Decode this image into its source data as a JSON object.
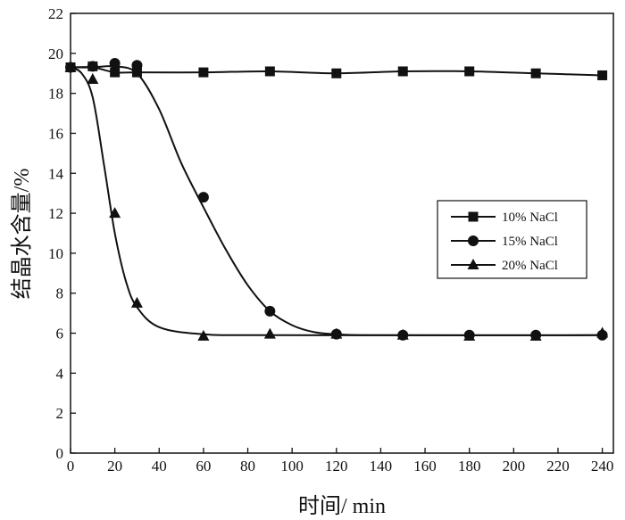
{
  "chart_data": {
    "type": "line",
    "xlabel": "时间/ min",
    "ylabel": "结晶水含量/%",
    "xlim": [
      0,
      245
    ],
    "ylim": [
      0,
      22
    ],
    "xticks": [
      0,
      20,
      40,
      60,
      80,
      100,
      120,
      140,
      160,
      180,
      200,
      220,
      240
    ],
    "yticks": [
      0,
      2,
      4,
      6,
      8,
      10,
      12,
      14,
      16,
      18,
      20,
      22
    ],
    "legend_position": "center-right",
    "grid": false,
    "series": [
      {
        "name": "10% NaCl",
        "marker": "square",
        "points": [
          [
            0,
            19.3
          ],
          [
            10,
            19.35
          ],
          [
            20,
            19.05
          ],
          [
            30,
            19.05
          ],
          [
            60,
            19.05
          ],
          [
            90,
            19.1
          ],
          [
            120,
            19.0
          ],
          [
            150,
            19.1
          ],
          [
            180,
            19.1
          ],
          [
            210,
            19.0
          ],
          [
            240,
            18.9
          ]
        ],
        "fit": [
          [
            0,
            19.3
          ],
          [
            10,
            19.3
          ],
          [
            20,
            19.05
          ],
          [
            30,
            19.05
          ],
          [
            60,
            19.05
          ],
          [
            90,
            19.1
          ],
          [
            120,
            19.0
          ],
          [
            150,
            19.1
          ],
          [
            180,
            19.1
          ],
          [
            210,
            19.0
          ],
          [
            240,
            18.9
          ]
        ]
      },
      {
        "name": "15% NaCl",
        "marker": "circle",
        "points": [
          [
            0,
            19.3
          ],
          [
            10,
            19.35
          ],
          [
            20,
            19.5
          ],
          [
            30,
            19.4
          ],
          [
            60,
            12.8
          ],
          [
            90,
            7.1
          ],
          [
            120,
            5.95
          ],
          [
            150,
            5.9
          ],
          [
            180,
            5.9
          ],
          [
            210,
            5.9
          ],
          [
            240,
            5.9
          ]
        ],
        "fit": [
          [
            0,
            19.3
          ],
          [
            10,
            19.3
          ],
          [
            20,
            19.35
          ],
          [
            30,
            19.0
          ],
          [
            40,
            17.2
          ],
          [
            50,
            14.5
          ],
          [
            60,
            12.3
          ],
          [
            70,
            10.2
          ],
          [
            80,
            8.4
          ],
          [
            90,
            7.1
          ],
          [
            100,
            6.4
          ],
          [
            110,
            6.05
          ],
          [
            120,
            5.95
          ],
          [
            140,
            5.9
          ],
          [
            240,
            5.9
          ]
        ]
      },
      {
        "name": "20% NaCl",
        "marker": "triangle",
        "points": [
          [
            0,
            19.3
          ],
          [
            10,
            18.7
          ],
          [
            20,
            12.0
          ],
          [
            30,
            7.5
          ],
          [
            60,
            5.85
          ],
          [
            90,
            5.95
          ],
          [
            120,
            5.95
          ],
          [
            150,
            5.9
          ],
          [
            180,
            5.85
          ],
          [
            210,
            5.85
          ],
          [
            240,
            6.0
          ]
        ],
        "fit": [
          [
            0,
            19.3
          ],
          [
            5,
            19.0
          ],
          [
            10,
            17.8
          ],
          [
            15,
            14.5
          ],
          [
            20,
            11.0
          ],
          [
            25,
            8.6
          ],
          [
            30,
            7.3
          ],
          [
            40,
            6.3
          ],
          [
            60,
            5.95
          ],
          [
            90,
            5.9
          ],
          [
            240,
            5.9
          ]
        ]
      }
    ]
  }
}
